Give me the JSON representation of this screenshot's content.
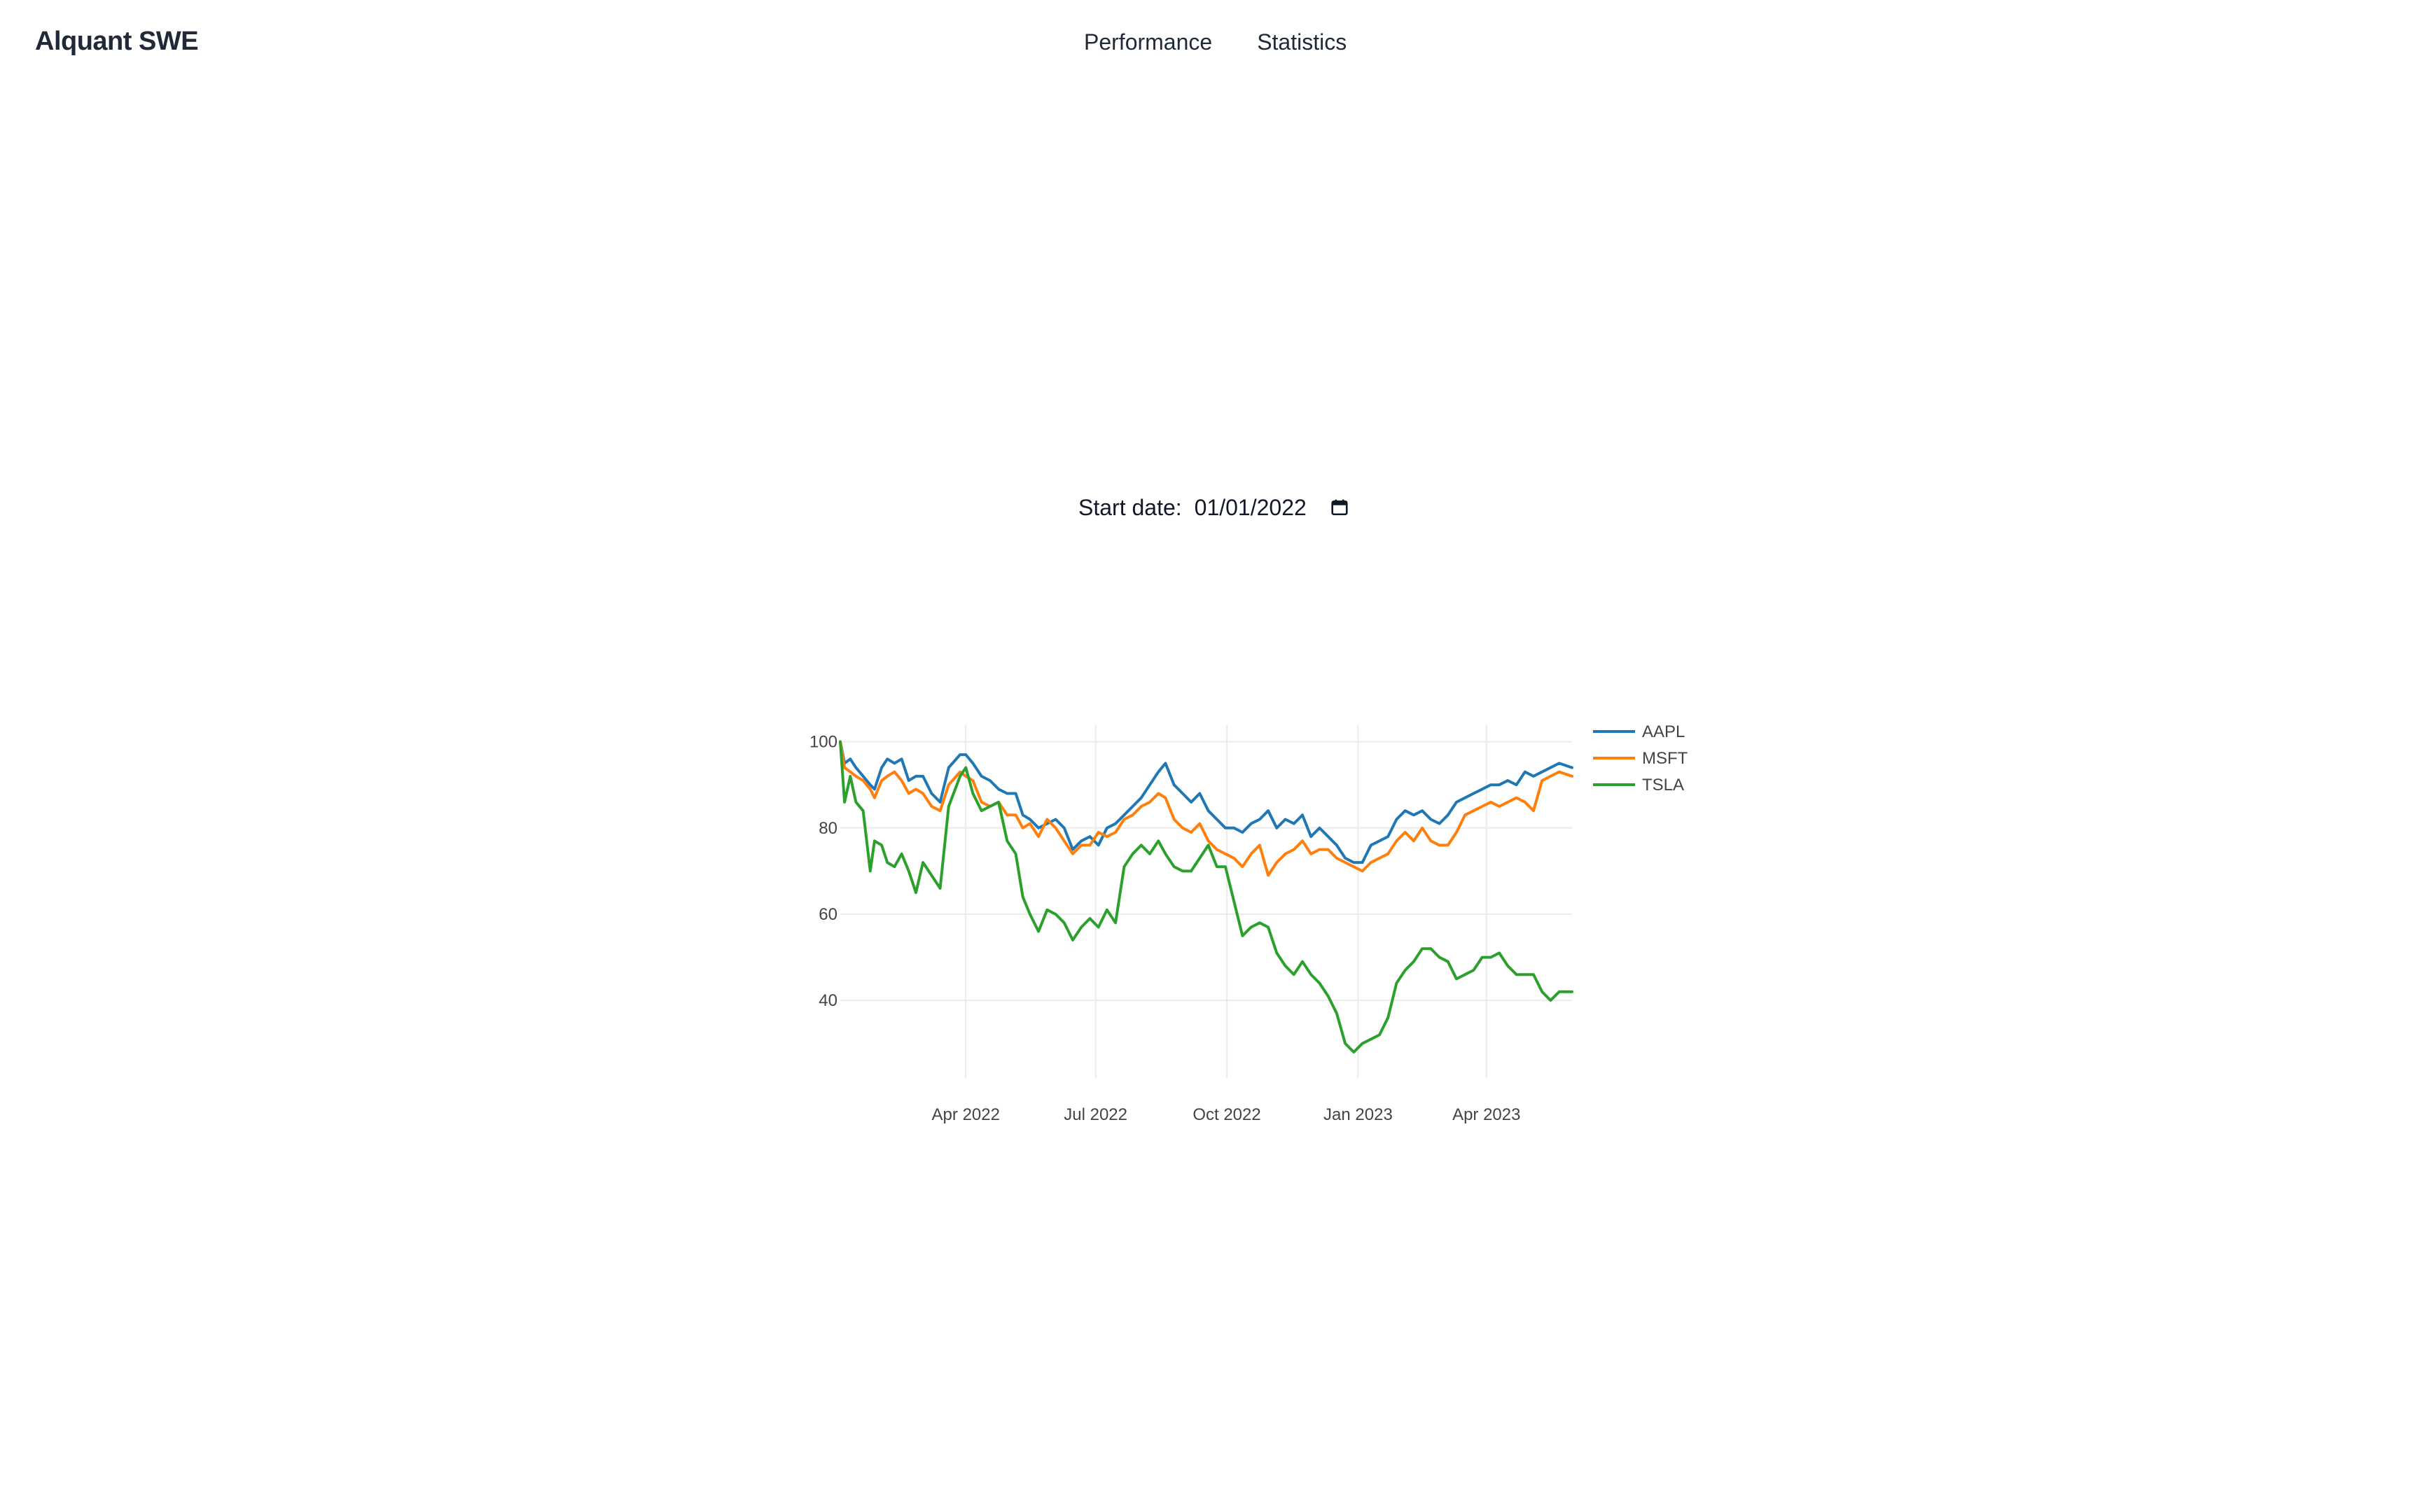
{
  "navbar": {
    "brand": "Alquant SWE",
    "links": [
      "Performance",
      "Statistics"
    ]
  },
  "controls": {
    "start_date_label": "Start date:",
    "start_date_value": "01/01/2022",
    "calendar_icon": "calendar-icon"
  },
  "chart_data": {
    "type": "line",
    "title": "",
    "xlabel": "",
    "ylabel": "",
    "x_range": [
      "2022-01-03",
      "2023-05-31"
    ],
    "ylim": [
      22,
      104
    ],
    "y_ticks": [
      40,
      60,
      80,
      100
    ],
    "x_ticks": [
      {
        "date": "2022-04-01",
        "label": "Apr 2022"
      },
      {
        "date": "2022-07-01",
        "label": "Jul 2022"
      },
      {
        "date": "2022-10-01",
        "label": "Oct 2022"
      },
      {
        "date": "2023-01-01",
        "label": "Jan 2023"
      },
      {
        "date": "2023-04-01",
        "label": "Apr 2023"
      }
    ],
    "grid": true,
    "legend_position": "right",
    "series": [
      {
        "name": "AAPL",
        "color": "#1f77b4",
        "points": [
          [
            "2022-01-03",
            100
          ],
          [
            "2022-01-06",
            95
          ],
          [
            "2022-01-10",
            96
          ],
          [
            "2022-01-14",
            94
          ],
          [
            "2022-01-19",
            92
          ],
          [
            "2022-01-24",
            90
          ],
          [
            "2022-01-27",
            89
          ],
          [
            "2022-02-01",
            94
          ],
          [
            "2022-02-05",
            96
          ],
          [
            "2022-02-10",
            95
          ],
          [
            "2022-02-15",
            96
          ],
          [
            "2022-02-20",
            91
          ],
          [
            "2022-02-25",
            92
          ],
          [
            "2022-03-02",
            92
          ],
          [
            "2022-03-08",
            88
          ],
          [
            "2022-03-14",
            86
          ],
          [
            "2022-03-20",
            94
          ],
          [
            "2022-03-28",
            97
          ],
          [
            "2022-04-01",
            97
          ],
          [
            "2022-04-06",
            95
          ],
          [
            "2022-04-12",
            92
          ],
          [
            "2022-04-18",
            91
          ],
          [
            "2022-04-24",
            89
          ],
          [
            "2022-04-30",
            88
          ],
          [
            "2022-05-06",
            88
          ],
          [
            "2022-05-11",
            83
          ],
          [
            "2022-05-16",
            82
          ],
          [
            "2022-05-22",
            80
          ],
          [
            "2022-05-28",
            81
          ],
          [
            "2022-06-03",
            82
          ],
          [
            "2022-06-09",
            80
          ],
          [
            "2022-06-15",
            75
          ],
          [
            "2022-06-21",
            77
          ],
          [
            "2022-06-27",
            78
          ],
          [
            "2022-07-03",
            76
          ],
          [
            "2022-07-09",
            80
          ],
          [
            "2022-07-15",
            81
          ],
          [
            "2022-07-21",
            83
          ],
          [
            "2022-07-27",
            85
          ],
          [
            "2022-08-02",
            87
          ],
          [
            "2022-08-08",
            90
          ],
          [
            "2022-08-14",
            93
          ],
          [
            "2022-08-19",
            95
          ],
          [
            "2022-08-25",
            90
          ],
          [
            "2022-08-31",
            88
          ],
          [
            "2022-09-06",
            86
          ],
          [
            "2022-09-12",
            88
          ],
          [
            "2022-09-18",
            84
          ],
          [
            "2022-09-24",
            82
          ],
          [
            "2022-09-30",
            80
          ],
          [
            "2022-10-06",
            80
          ],
          [
            "2022-10-12",
            79
          ],
          [
            "2022-10-18",
            81
          ],
          [
            "2022-10-24",
            82
          ],
          [
            "2022-10-30",
            84
          ],
          [
            "2022-11-05",
            80
          ],
          [
            "2022-11-11",
            82
          ],
          [
            "2022-11-17",
            81
          ],
          [
            "2022-11-23",
            83
          ],
          [
            "2022-11-29",
            78
          ],
          [
            "2022-12-05",
            80
          ],
          [
            "2022-12-11",
            78
          ],
          [
            "2022-12-17",
            76
          ],
          [
            "2022-12-23",
            73
          ],
          [
            "2022-12-29",
            72
          ],
          [
            "2023-01-04",
            72
          ],
          [
            "2023-01-10",
            76
          ],
          [
            "2023-01-16",
            77
          ],
          [
            "2023-01-22",
            78
          ],
          [
            "2023-01-28",
            82
          ],
          [
            "2023-02-03",
            84
          ],
          [
            "2023-02-09",
            83
          ],
          [
            "2023-02-15",
            84
          ],
          [
            "2023-02-21",
            82
          ],
          [
            "2023-02-27",
            81
          ],
          [
            "2023-03-05",
            83
          ],
          [
            "2023-03-11",
            86
          ],
          [
            "2023-03-17",
            87
          ],
          [
            "2023-03-23",
            88
          ],
          [
            "2023-03-29",
            89
          ],
          [
            "2023-04-04",
            90
          ],
          [
            "2023-04-10",
            90
          ],
          [
            "2023-04-16",
            91
          ],
          [
            "2023-04-22",
            90
          ],
          [
            "2023-04-28",
            93
          ],
          [
            "2023-05-04",
            92
          ],
          [
            "2023-05-10",
            93
          ],
          [
            "2023-05-16",
            94
          ],
          [
            "2023-05-22",
            95
          ],
          [
            "2023-05-31",
            94
          ]
        ]
      },
      {
        "name": "MSFT",
        "color": "#ff7f0e",
        "points": [
          [
            "2022-01-03",
            100
          ],
          [
            "2022-01-06",
            94
          ],
          [
            "2022-01-10",
            93
          ],
          [
            "2022-01-14",
            92
          ],
          [
            "2022-01-19",
            91
          ],
          [
            "2022-01-24",
            89
          ],
          [
            "2022-01-27",
            87
          ],
          [
            "2022-02-01",
            91
          ],
          [
            "2022-02-05",
            92
          ],
          [
            "2022-02-10",
            93
          ],
          [
            "2022-02-15",
            91
          ],
          [
            "2022-02-20",
            88
          ],
          [
            "2022-02-25",
            89
          ],
          [
            "2022-03-02",
            88
          ],
          [
            "2022-03-08",
            85
          ],
          [
            "2022-03-14",
            84
          ],
          [
            "2022-03-20",
            90
          ],
          [
            "2022-03-28",
            93
          ],
          [
            "2022-04-01",
            92
          ],
          [
            "2022-04-06",
            91
          ],
          [
            "2022-04-12",
            86
          ],
          [
            "2022-04-18",
            85
          ],
          [
            "2022-04-24",
            86
          ],
          [
            "2022-04-30",
            83
          ],
          [
            "2022-05-06",
            83
          ],
          [
            "2022-05-11",
            80
          ],
          [
            "2022-05-16",
            81
          ],
          [
            "2022-05-22",
            78
          ],
          [
            "2022-05-28",
            82
          ],
          [
            "2022-06-03",
            80
          ],
          [
            "2022-06-09",
            77
          ],
          [
            "2022-06-15",
            74
          ],
          [
            "2022-06-21",
            76
          ],
          [
            "2022-06-27",
            76
          ],
          [
            "2022-07-03",
            79
          ],
          [
            "2022-07-09",
            78
          ],
          [
            "2022-07-15",
            79
          ],
          [
            "2022-07-21",
            82
          ],
          [
            "2022-07-27",
            83
          ],
          [
            "2022-08-02",
            85
          ],
          [
            "2022-08-08",
            86
          ],
          [
            "2022-08-14",
            88
          ],
          [
            "2022-08-19",
            87
          ],
          [
            "2022-08-25",
            82
          ],
          [
            "2022-08-31",
            80
          ],
          [
            "2022-09-06",
            79
          ],
          [
            "2022-09-12",
            81
          ],
          [
            "2022-09-18",
            77
          ],
          [
            "2022-09-24",
            75
          ],
          [
            "2022-09-30",
            74
          ],
          [
            "2022-10-06",
            73
          ],
          [
            "2022-10-12",
            71
          ],
          [
            "2022-10-18",
            74
          ],
          [
            "2022-10-24",
            76
          ],
          [
            "2022-10-30",
            69
          ],
          [
            "2022-11-05",
            72
          ],
          [
            "2022-11-11",
            74
          ],
          [
            "2022-11-17",
            75
          ],
          [
            "2022-11-23",
            77
          ],
          [
            "2022-11-29",
            74
          ],
          [
            "2022-12-05",
            75
          ],
          [
            "2022-12-11",
            75
          ],
          [
            "2022-12-17",
            73
          ],
          [
            "2022-12-23",
            72
          ],
          [
            "2022-12-29",
            71
          ],
          [
            "2023-01-04",
            70
          ],
          [
            "2023-01-10",
            72
          ],
          [
            "2023-01-16",
            73
          ],
          [
            "2023-01-22",
            74
          ],
          [
            "2023-01-28",
            77
          ],
          [
            "2023-02-03",
            79
          ],
          [
            "2023-02-09",
            77
          ],
          [
            "2023-02-15",
            80
          ],
          [
            "2023-02-21",
            77
          ],
          [
            "2023-02-27",
            76
          ],
          [
            "2023-03-05",
            76
          ],
          [
            "2023-03-11",
            79
          ],
          [
            "2023-03-17",
            83
          ],
          [
            "2023-03-23",
            84
          ],
          [
            "2023-03-29",
            85
          ],
          [
            "2023-04-04",
            86
          ],
          [
            "2023-04-10",
            85
          ],
          [
            "2023-04-16",
            86
          ],
          [
            "2023-04-22",
            87
          ],
          [
            "2023-04-28",
            86
          ],
          [
            "2023-05-04",
            84
          ],
          [
            "2023-05-10",
            91
          ],
          [
            "2023-05-16",
            92
          ],
          [
            "2023-05-22",
            93
          ],
          [
            "2023-05-31",
            92
          ]
        ]
      },
      {
        "name": "TSLA",
        "color": "#2ca02c",
        "points": [
          [
            "2022-01-03",
            100
          ],
          [
            "2022-01-06",
            86
          ],
          [
            "2022-01-10",
            92
          ],
          [
            "2022-01-14",
            86
          ],
          [
            "2022-01-19",
            84
          ],
          [
            "2022-01-24",
            70
          ],
          [
            "2022-01-27",
            77
          ],
          [
            "2022-02-01",
            76
          ],
          [
            "2022-02-05",
            72
          ],
          [
            "2022-02-10",
            71
          ],
          [
            "2022-02-15",
            74
          ],
          [
            "2022-02-20",
            70
          ],
          [
            "2022-02-25",
            65
          ],
          [
            "2022-03-02",
            72
          ],
          [
            "2022-03-08",
            69
          ],
          [
            "2022-03-14",
            66
          ],
          [
            "2022-03-20",
            85
          ],
          [
            "2022-03-28",
            92
          ],
          [
            "2022-04-01",
            94
          ],
          [
            "2022-04-06",
            88
          ],
          [
            "2022-04-12",
            84
          ],
          [
            "2022-04-18",
            85
          ],
          [
            "2022-04-24",
            86
          ],
          [
            "2022-04-30",
            77
          ],
          [
            "2022-05-06",
            74
          ],
          [
            "2022-05-11",
            64
          ],
          [
            "2022-05-16",
            60
          ],
          [
            "2022-05-22",
            56
          ],
          [
            "2022-05-28",
            61
          ],
          [
            "2022-06-03",
            60
          ],
          [
            "2022-06-09",
            58
          ],
          [
            "2022-06-15",
            54
          ],
          [
            "2022-06-21",
            57
          ],
          [
            "2022-06-27",
            59
          ],
          [
            "2022-07-03",
            57
          ],
          [
            "2022-07-09",
            61
          ],
          [
            "2022-07-15",
            58
          ],
          [
            "2022-07-21",
            71
          ],
          [
            "2022-07-27",
            74
          ],
          [
            "2022-08-02",
            76
          ],
          [
            "2022-08-08",
            74
          ],
          [
            "2022-08-14",
            77
          ],
          [
            "2022-08-19",
            74
          ],
          [
            "2022-08-25",
            71
          ],
          [
            "2022-08-31",
            70
          ],
          [
            "2022-09-06",
            70
          ],
          [
            "2022-09-12",
            73
          ],
          [
            "2022-09-18",
            76
          ],
          [
            "2022-09-24",
            71
          ],
          [
            "2022-09-30",
            71
          ],
          [
            "2022-10-06",
            63
          ],
          [
            "2022-10-12",
            55
          ],
          [
            "2022-10-18",
            57
          ],
          [
            "2022-10-24",
            58
          ],
          [
            "2022-10-30",
            57
          ],
          [
            "2022-11-05",
            51
          ],
          [
            "2022-11-11",
            48
          ],
          [
            "2022-11-17",
            46
          ],
          [
            "2022-11-23",
            49
          ],
          [
            "2022-11-29",
            46
          ],
          [
            "2022-12-05",
            44
          ],
          [
            "2022-12-11",
            41
          ],
          [
            "2022-12-17",
            37
          ],
          [
            "2022-12-23",
            30
          ],
          [
            "2022-12-29",
            28
          ],
          [
            "2023-01-04",
            30
          ],
          [
            "2023-01-10",
            31
          ],
          [
            "2023-01-16",
            32
          ],
          [
            "2023-01-22",
            36
          ],
          [
            "2023-01-28",
            44
          ],
          [
            "2023-02-03",
            47
          ],
          [
            "2023-02-09",
            49
          ],
          [
            "2023-02-15",
            52
          ],
          [
            "2023-02-21",
            52
          ],
          [
            "2023-02-27",
            50
          ],
          [
            "2023-03-05",
            49
          ],
          [
            "2023-03-11",
            45
          ],
          [
            "2023-03-17",
            46
          ],
          [
            "2023-03-23",
            47
          ],
          [
            "2023-03-29",
            50
          ],
          [
            "2023-04-04",
            50
          ],
          [
            "2023-04-10",
            51
          ],
          [
            "2023-04-16",
            48
          ],
          [
            "2023-04-22",
            46
          ],
          [
            "2023-04-28",
            46
          ],
          [
            "2023-05-04",
            46
          ],
          [
            "2023-05-10",
            42
          ],
          [
            "2023-05-16",
            40
          ],
          [
            "2023-05-22",
            42
          ],
          [
            "2023-05-31",
            42
          ]
        ]
      }
    ]
  }
}
